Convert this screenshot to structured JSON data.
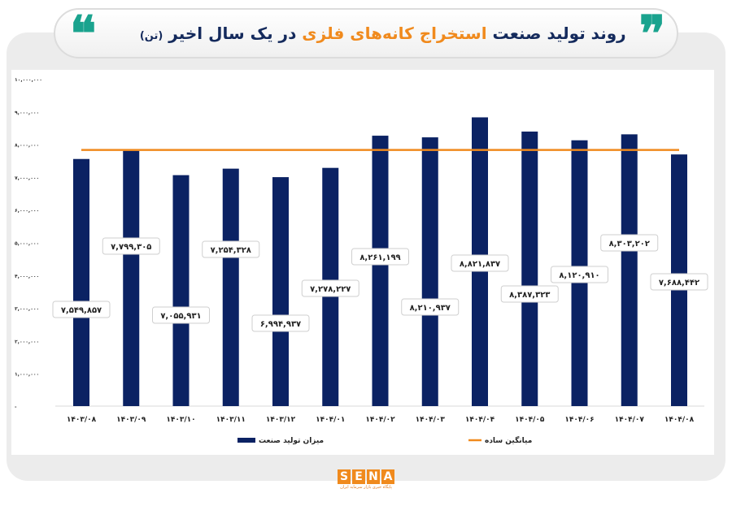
{
  "header": {
    "title_part1": "روند تولید صنعت",
    "title_highlight": "استخراج کانه‌های فلزی",
    "title_part2": "در یک سال اخیر",
    "title_unit": "(تن)",
    "quote_open": "❝",
    "quote_close": "❞"
  },
  "logo": {
    "letters": [
      "S",
      "E",
      "N",
      "A"
    ],
    "tagline": "پایگاه خبری بازار سرمایه ایران"
  },
  "colors": {
    "bar": "#0b2263",
    "average_line": "#f08a1d",
    "highlight": "#f08a1d",
    "navy": "#142a5c",
    "quote": "#1aa38e"
  },
  "chart_data": {
    "type": "bar",
    "title": "روند تولید صنعت استخراج کانه‌های فلزی در یک سال اخیر (تن)",
    "categories": [
      "۱۴۰۳/۰۸",
      "۱۴۰۳/۰۹",
      "۱۴۰۳/۱۰",
      "۱۴۰۳/۱۱",
      "۱۴۰۳/۱۲",
      "۱۴۰۴/۰۱",
      "۱۴۰۴/۰۲",
      "۱۴۰۴/۰۳",
      "۱۴۰۴/۰۴",
      "۱۴۰۴/۰۵",
      "۱۴۰۴/۰۶",
      "۱۴۰۴/۰۷",
      "۱۴۰۴/۰۸"
    ],
    "series": [
      {
        "name": "میزان تولید صنعت",
        "type": "bar",
        "values": [
          7549857,
          7799305,
          7055931,
          7254328,
          6994937,
          7278227,
          8261199,
          8210937,
          8821837,
          8387323,
          8120910,
          8303202,
          7688442
        ],
        "data_labels": [
          "۷,۵۴۹,۸۵۷",
          "۷,۷۹۹,۳۰۵",
          "۷,۰۵۵,۹۳۱",
          "۷,۲۵۴,۳۲۸",
          "۶,۹۹۴,۹۳۷",
          "۷,۲۷۸,۲۲۷",
          "۸,۲۶۱,۱۹۹",
          "۸,۲۱۰,۹۳۷",
          "۸,۸۲۱,۸۳۷",
          "۸,۳۸۷,۳۲۳",
          "۸,۱۲۰,۹۱۰",
          "۸,۳۰۳,۲۰۲",
          "۷,۶۸۸,۴۴۲"
        ]
      },
      {
        "name": "میانگین ساده",
        "type": "line",
        "value": 7825110
      }
    ],
    "ylim": [
      0,
      10000000
    ],
    "yticks": [
      0,
      1000000,
      2000000,
      3000000,
      4000000,
      5000000,
      6000000,
      7000000,
      8000000,
      9000000,
      10000000
    ],
    "ytick_labels": [
      "-",
      "۱,۰۰۰,۰۰۰",
      "۲,۰۰۰,۰۰۰",
      "۳,۰۰۰,۰۰۰",
      "۴,۰۰۰,۰۰۰",
      "۵,۰۰۰,۰۰۰",
      "۶,۰۰۰,۰۰۰",
      "۷,۰۰۰,۰۰۰",
      "۸,۰۰۰,۰۰۰",
      "۹,۰۰۰,۰۰۰",
      "۱۰,۰۰۰,۰۰۰"
    ],
    "grid": false,
    "legend": "bottom"
  }
}
